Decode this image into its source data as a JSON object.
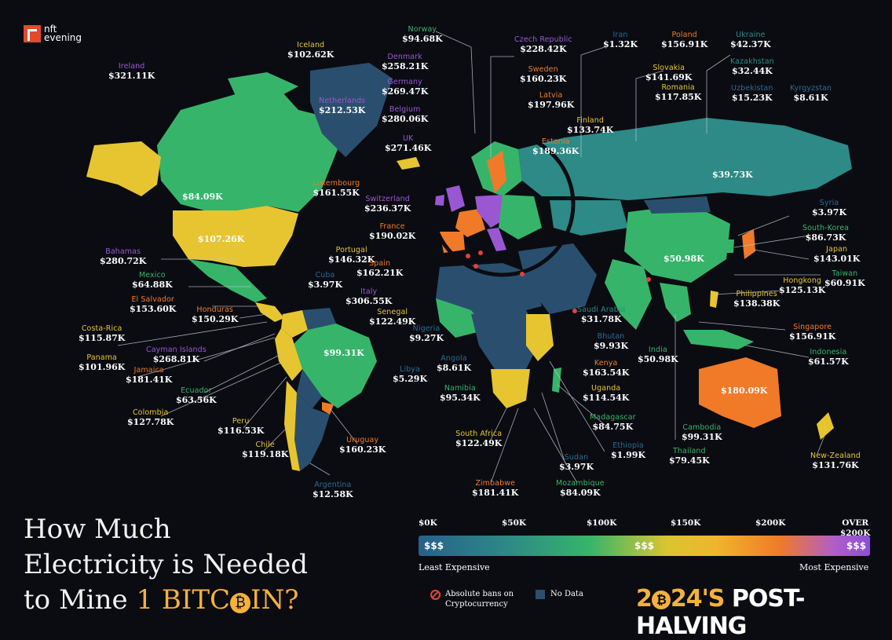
{
  "brand": {
    "line1": "nft",
    "line2": "evening"
  },
  "title": {
    "line1": "How Much",
    "line2": "Electricity is Needed",
    "line3_pre": "to Mine ",
    "line3_hl1": "1 BITC",
    "line3_hl2": "IN?",
    "coin_glyph": "₿"
  },
  "subtitle": {
    "pre": "2",
    "coin_glyph": "₿",
    "year": "24'S",
    "rest": " POST-HALVING"
  },
  "scale": {
    "ticks": [
      "$0K",
      "$50K",
      "$100K",
      "$150K",
      "$200K"
    ],
    "over_top": "OVER",
    "over_bottom": "$200K",
    "low_label": "Least Expensive",
    "high_label": "Most Expensive",
    "low_symbol": "$$$",
    "mid_symbol": "$$$",
    "high_symbol": "$$$"
  },
  "legend": {
    "ban_line1": "Absolute bans on",
    "ban_line2": "Cryptocurrency",
    "nodata": "No Data"
  },
  "colors": {
    "bg": "#0b0c12",
    "no_data": "#2a4f6e",
    "ban": "#e0443a",
    "accent": "#f4b13b"
  },
  "map_data": {
    "type": "choropleth",
    "unit": "USD per 1 Bitcoin (electricity cost)",
    "countries": [
      {
        "name": "Norway",
        "value": "$94.68K",
        "color": "#36b56a"
      },
      {
        "name": "Iceland",
        "value": "$102.62K",
        "color": "#e7c531"
      },
      {
        "name": "Ireland",
        "value": "$321.11K",
        "color": "#9a57d2"
      },
      {
        "name": "Denmark",
        "value": "$258.21K",
        "color": "#9a57d2"
      },
      {
        "name": "Germany",
        "value": "$269.47K",
        "color": "#9a57d2"
      },
      {
        "name": "Netherlands",
        "value": "$212.53K",
        "color": "#9a57d2"
      },
      {
        "name": "Belgium",
        "value": "$280.06K",
        "color": "#9a57d2"
      },
      {
        "name": "UK",
        "value": "$271.46K",
        "color": "#9a57d2"
      },
      {
        "name": "Czech Republic",
        "value": "$228.42K",
        "color": "#9a57d2"
      },
      {
        "name": "Sweden",
        "value": "$160.23K",
        "color": "#f07a28"
      },
      {
        "name": "Latvia",
        "value": "$197.96K",
        "color": "#f07a28"
      },
      {
        "name": "Finland",
        "value": "$133.74K",
        "color": "#e7c531"
      },
      {
        "name": "Estonia",
        "value": "$189.36K",
        "color": "#f07a28"
      },
      {
        "name": "Iran",
        "value": "$1.32K",
        "color": "#2a6b91"
      },
      {
        "name": "Poland",
        "value": "$156.91K",
        "color": "#f07a28"
      },
      {
        "name": "Slovakia",
        "value": "$141.69K",
        "color": "#e7c531"
      },
      {
        "name": "Romania",
        "value": "$117.85K",
        "color": "#e7c531"
      },
      {
        "name": "Ukraine",
        "value": "$42.37K",
        "color": "#2d8a86"
      },
      {
        "name": "Kazakhstan",
        "value": "$32.44K",
        "color": "#2d8a86"
      },
      {
        "name": "Uzbekistan",
        "value": "$15.23K",
        "color": "#2a6b91"
      },
      {
        "name": "Kyrgyzstan",
        "value": "$8.61K",
        "color": "#2a6b91"
      },
      {
        "name": "Russia",
        "value": "$39.73K",
        "color": "#2d8a86"
      },
      {
        "name": "Luxembourg",
        "value": "$161.55K",
        "color": "#f07a28"
      },
      {
        "name": "Switzerland",
        "value": "$236.37K",
        "color": "#9a57d2"
      },
      {
        "name": "France",
        "value": "$190.02K",
        "color": "#f07a28"
      },
      {
        "name": "Portugal",
        "value": "$146.32K",
        "color": "#e7c531"
      },
      {
        "name": "Spain",
        "value": "$162.21K",
        "color": "#f07a28"
      },
      {
        "name": "Italy",
        "value": "$306.55K",
        "color": "#9a57d2"
      },
      {
        "name": "Canada",
        "value": "$84.09K",
        "color": "#36b56a"
      },
      {
        "name": "USA",
        "value": "$107.26K",
        "color": "#e7c531"
      },
      {
        "name": "Bahamas",
        "value": "$280.72K",
        "color": "#9a57d2"
      },
      {
        "name": "Mexico",
        "value": "$64.88K",
        "color": "#36b56a"
      },
      {
        "name": "Cuba",
        "value": "$3.97K",
        "color": "#2a6b91"
      },
      {
        "name": "El Salvador",
        "value": "$153.60K",
        "color": "#f07a28"
      },
      {
        "name": "Honduras",
        "value": "$150.29K",
        "color": "#f07a28"
      },
      {
        "name": "Costa-Rica",
        "value": "$115.87K",
        "color": "#e7c531"
      },
      {
        "name": "Panama",
        "value": "$101.96K",
        "color": "#e7c531"
      },
      {
        "name": "Cayman Islands",
        "value": "$268.81K",
        "color": "#9a57d2"
      },
      {
        "name": "Jamaica",
        "value": "$181.41K",
        "color": "#f07a28"
      },
      {
        "name": "Ecuador",
        "value": "$63.56K",
        "color": "#36b56a"
      },
      {
        "name": "Colombia",
        "value": "$127.78K",
        "color": "#e7c531"
      },
      {
        "name": "Peru",
        "value": "$116.53K",
        "color": "#e7c531"
      },
      {
        "name": "Chile",
        "value": "$119.18K",
        "color": "#e7c531"
      },
      {
        "name": "Brazil",
        "value": "$99.31K",
        "color": "#36b56a"
      },
      {
        "name": "Uruguay",
        "value": "$160.23K",
        "color": "#f07a28"
      },
      {
        "name": "Argentina",
        "value": "$12.58K",
        "color": "#2a6b91"
      },
      {
        "name": "Senegal",
        "value": "$122.49K",
        "color": "#e7c531"
      },
      {
        "name": "Nigeria",
        "value": "$9.27K",
        "color": "#2a6b91"
      },
      {
        "name": "Angola",
        "value": "$8.61K",
        "color": "#2a6b91"
      },
      {
        "name": "Libya",
        "value": "$5.29K",
        "color": "#2a6b91"
      },
      {
        "name": "Namibia",
        "value": "$95.34K",
        "color": "#36b56a"
      },
      {
        "name": "South Africa",
        "value": "$122.49K",
        "color": "#e7c531"
      },
      {
        "name": "Zimbabwe",
        "value": "$181.41K",
        "color": "#f07a28"
      },
      {
        "name": "Mozambique",
        "value": "$84.09K",
        "color": "#36b56a"
      },
      {
        "name": "Sudan",
        "value": "$3.97K",
        "color": "#2a6b91"
      },
      {
        "name": "Ethiopia",
        "value": "$1.99K",
        "color": "#2a6b91"
      },
      {
        "name": "Madagascar",
        "value": "$84.75K",
        "color": "#36b56a"
      },
      {
        "name": "Uganda",
        "value": "$114.54K",
        "color": "#e7c531"
      },
      {
        "name": "Kenya",
        "value": "$163.54K",
        "color": "#f07a28"
      },
      {
        "name": "Saudi Arabia",
        "value": "$31.78K",
        "color": "#2d8a86"
      },
      {
        "name": "Bhutan",
        "value": "$9.93K",
        "color": "#2a6b91"
      },
      {
        "name": "India",
        "value": "$50.98K",
        "color": "#36b56a"
      },
      {
        "name": "China",
        "value": "$50.98K",
        "color": "#36b56a"
      },
      {
        "name": "Syria",
        "value": "$3.97K",
        "color": "#2a6b91"
      },
      {
        "name": "South-Korea",
        "value": "$86.73K",
        "color": "#36b56a"
      },
      {
        "name": "Japan",
        "value": "$143.01K",
        "color": "#e7c531"
      },
      {
        "name": "Taiwan",
        "value": "$60.91K",
        "color": "#36b56a"
      },
      {
        "name": "Hongkong",
        "value": "$125.13K",
        "color": "#e7c531"
      },
      {
        "name": "Philippines",
        "value": "$138.38K",
        "color": "#e7c531"
      },
      {
        "name": "Singapore",
        "value": "$156.91K",
        "color": "#f07a28"
      },
      {
        "name": "Indonesia",
        "value": "$61.57K",
        "color": "#36b56a"
      },
      {
        "name": "Australia",
        "value": "$180.09K",
        "color": "#f07a28"
      },
      {
        "name": "Cambodia",
        "value": "$99.31K",
        "color": "#36b56a"
      },
      {
        "name": "Thailand",
        "value": "$79.45K",
        "color": "#36b56a"
      },
      {
        "name": "New-Zealand",
        "value": "$131.76K",
        "color": "#e7c531"
      }
    ]
  }
}
